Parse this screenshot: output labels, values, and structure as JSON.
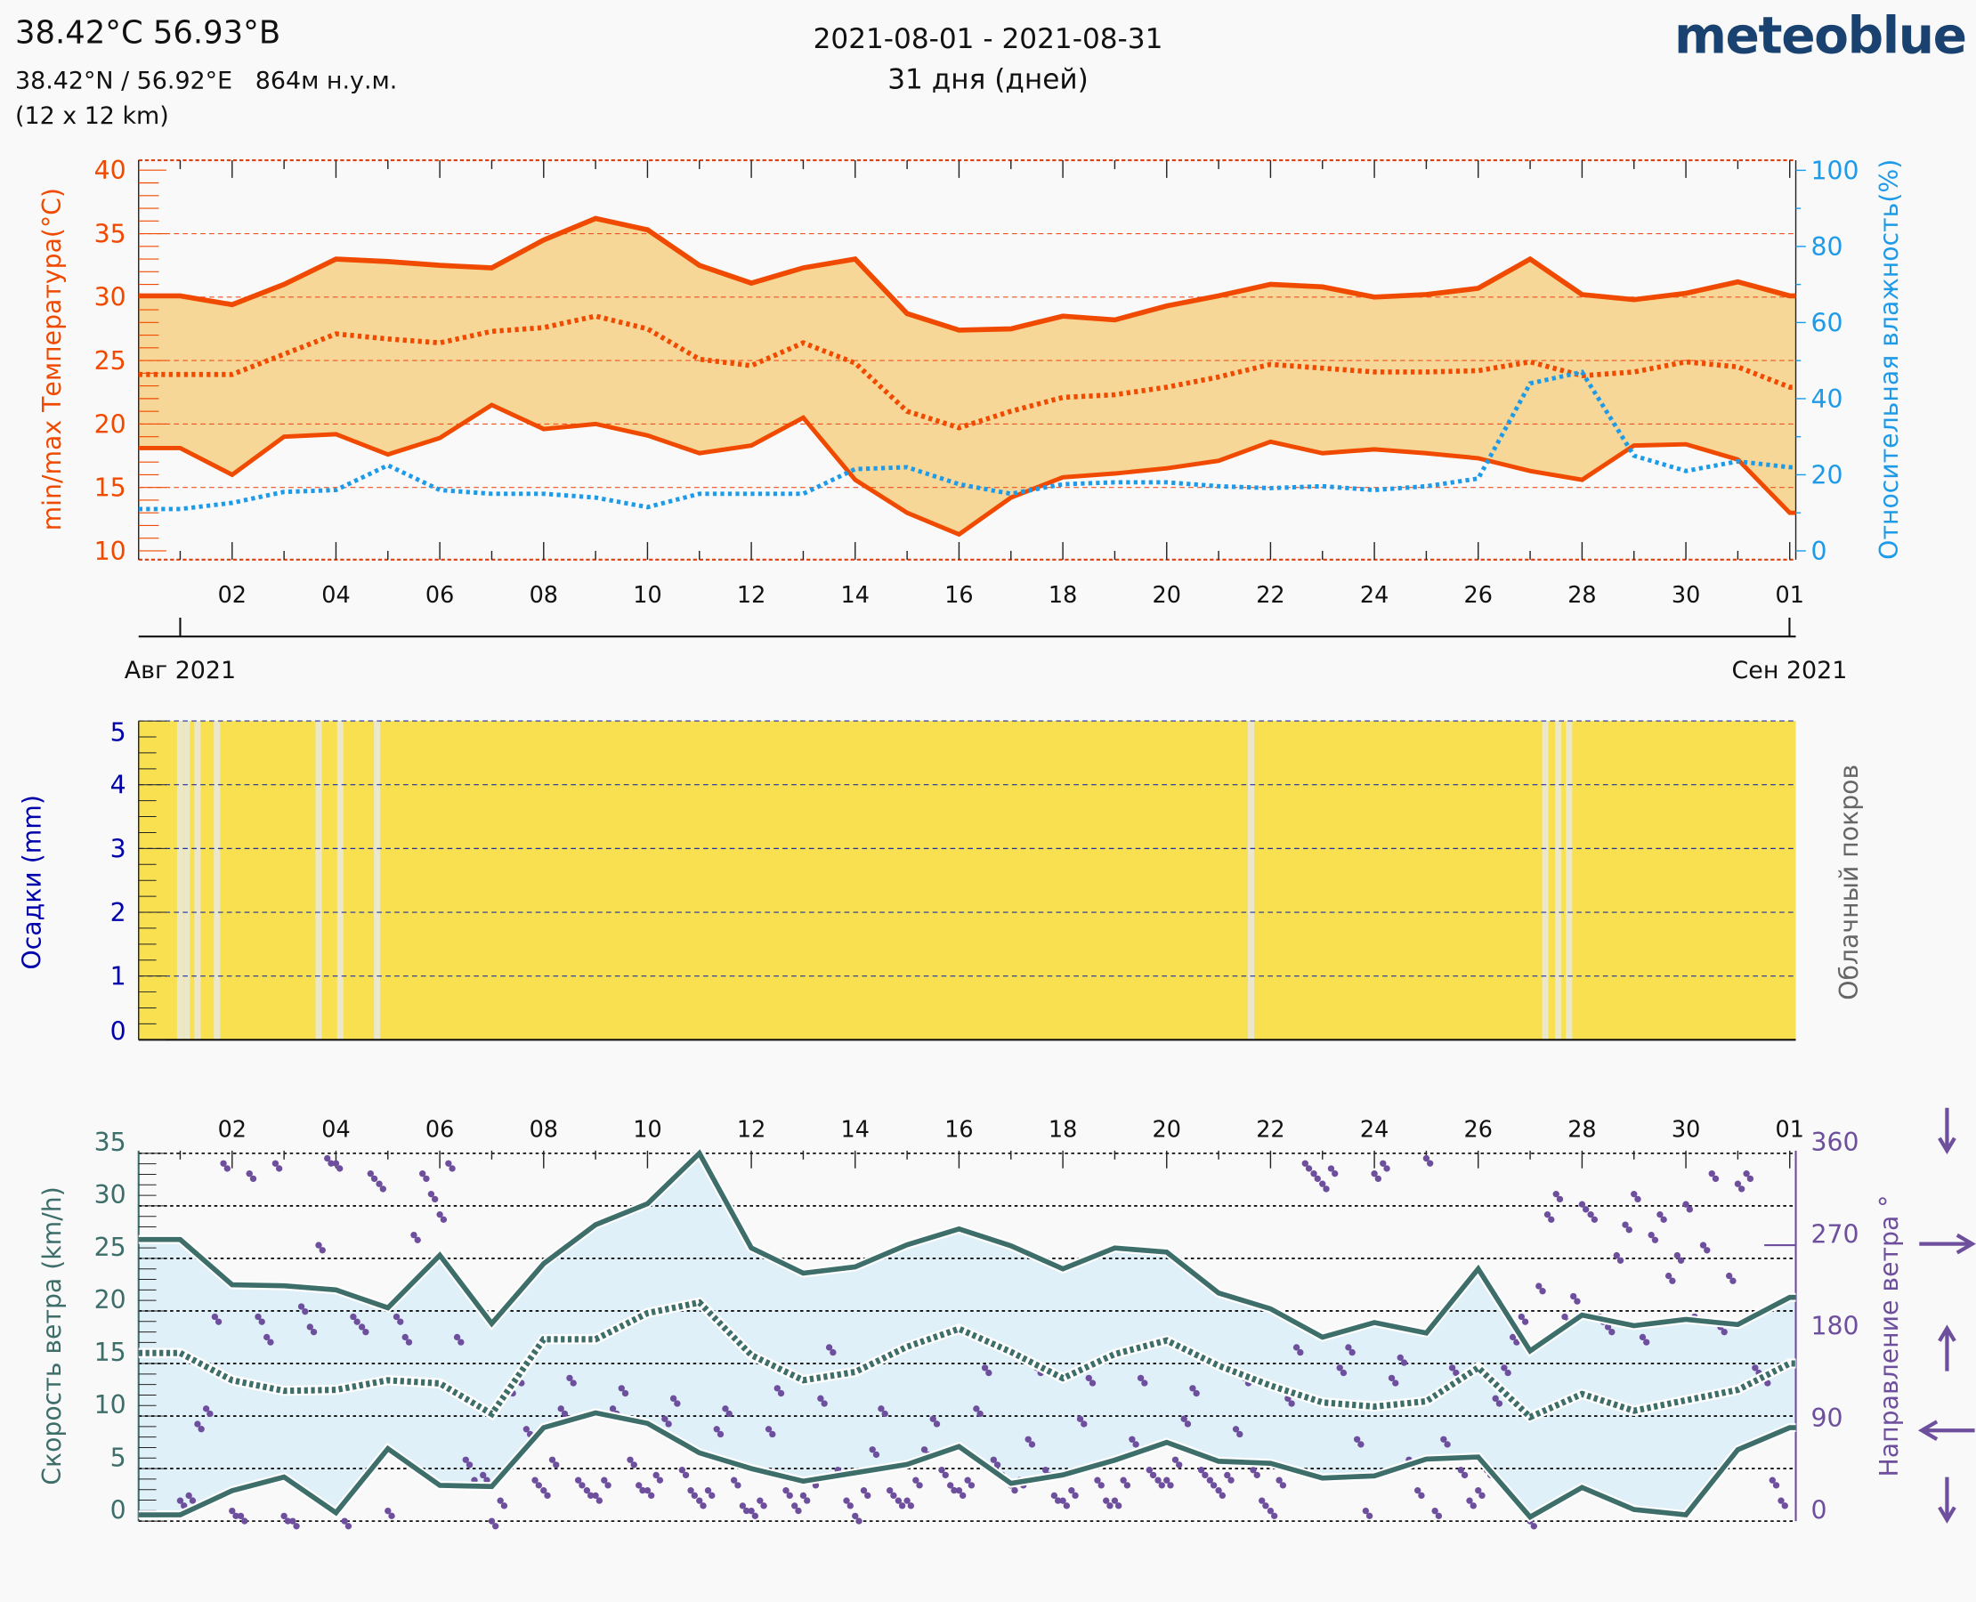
{
  "header": {
    "title": "38.42°C 56.93°В",
    "coords": "38.42°N / 56.92°E   864м н.у.м.",
    "resolution": "(12 x 12 km)",
    "date_range": "2021-08-01 - 2021-08-31",
    "days": "31 дня (дней)",
    "logo": "meteoblue"
  },
  "colors": {
    "temperature": "#f04a00",
    "temperature_fill": "#f7d797",
    "humidity": "#1e9be8",
    "precip_axis": "#0000aa",
    "clear_sky": "#f8e050",
    "cloud": "#e8e8e0",
    "wind": "#3d6e6a",
    "wind_fill": "#dff0f9",
    "direction": "#6e4f9e"
  },
  "axis_labels": {
    "temperature": "min/max Температура(°C)",
    "humidity": "Относительная влажность(%)",
    "month_start": "Авг 2021",
    "month_end": "Сен 2021",
    "precip": "Осадки (mm)",
    "cloud": "Облачный покров",
    "wind_speed": "Скорость ветра (km/h)",
    "wind_dir": "Направление ветра °"
  },
  "chart_data": [
    {
      "type": "line",
      "x": [
        "2021-08-01",
        "2021-08-02",
        "2021-08-03",
        "2021-08-04",
        "2021-08-05",
        "2021-08-06",
        "2021-08-07",
        "2021-08-08",
        "2021-08-09",
        "2021-08-10",
        "2021-08-11",
        "2021-08-12",
        "2021-08-13",
        "2021-08-14",
        "2021-08-15",
        "2021-08-16",
        "2021-08-17",
        "2021-08-18",
        "2021-08-19",
        "2021-08-20",
        "2021-08-21",
        "2021-08-22",
        "2021-08-23",
        "2021-08-24",
        "2021-08-25",
        "2021-08-26",
        "2021-08-27",
        "2021-08-28",
        "2021-08-29",
        "2021-08-30",
        "2021-08-31",
        "2021-09-01"
      ],
      "x_tick_labels": [
        "02",
        "04",
        "06",
        "08",
        "10",
        "12",
        "14",
        "16",
        "18",
        "20",
        "22",
        "24",
        "26",
        "28",
        "30",
        "01"
      ],
      "ylabel": "min/max Температура(°C)",
      "ylim": [
        10,
        40
      ],
      "y_ticks": [
        10,
        15,
        20,
        25,
        30,
        35,
        40
      ],
      "y2label": "Относительная влажность(%)",
      "y2lim": [
        0,
        100
      ],
      "y2_ticks": [
        0,
        20,
        40,
        60,
        80,
        100
      ],
      "series": [
        {
          "key": "temp_max",
          "style": "solid",
          "values": [
            30.1,
            29.4,
            31,
            33,
            32.8,
            32.5,
            32.3,
            34.5,
            36.2,
            35.3,
            32.5,
            31.1,
            32.3,
            33,
            28.7,
            27.4,
            27.5,
            28.5,
            28.2,
            29.3,
            30.1,
            31,
            30.8,
            30,
            30.2,
            30.7,
            33,
            30.2,
            29.8,
            30.3,
            31.2,
            30.1
          ]
        },
        {
          "key": "temp_mean",
          "style": "dotted",
          "values": [
            23.9,
            23.9,
            25.5,
            27.1,
            26.7,
            26.4,
            27.3,
            27.6,
            28.5,
            27.5,
            25.1,
            24.6,
            26.4,
            24.8,
            21,
            19.7,
            21,
            22.1,
            22.3,
            22.9,
            23.7,
            24.7,
            24.4,
            24.1,
            24.1,
            24.2,
            24.9,
            23.8,
            24.1,
            24.9,
            24.5,
            22.9
          ]
        },
        {
          "key": "temp_min",
          "style": "solid",
          "values": [
            18.1,
            16,
            19,
            19.2,
            17.6,
            18.9,
            21.5,
            19.6,
            20,
            19.1,
            17.7,
            18.3,
            20.5,
            15.6,
            13,
            11.3,
            14.2,
            15.8,
            16.1,
            16.5,
            17.1,
            18.6,
            17.7,
            18,
            17.7,
            17.3,
            16.3,
            15.6,
            18.3,
            18.4,
            17.2,
            13
          ]
        },
        {
          "key": "humidity",
          "axis": "right",
          "style": "dotted",
          "values": [
            11,
            12.6,
            15.5,
            16,
            22.5,
            16,
            15,
            15,
            14,
            11.5,
            15,
            15,
            15,
            21.5,
            22,
            17.5,
            15,
            17.5,
            18,
            18,
            17,
            16.5,
            17,
            16,
            17,
            19,
            44,
            47,
            25,
            21,
            23.5,
            22
          ]
        }
      ]
    },
    {
      "type": "bar",
      "ylabel": "Осадки (mm)",
      "ylim": [
        0,
        5
      ],
      "y_ticks": [
        0,
        1,
        2,
        3,
        4,
        5
      ],
      "y2label": "Облачный покров",
      "precipitation_daily": [
        0,
        0,
        0,
        0,
        0,
        0,
        0,
        0,
        0,
        0,
        0,
        0,
        0,
        0,
        0,
        0,
        0,
        0,
        0,
        0,
        0,
        0,
        0,
        0,
        0,
        0,
        0,
        0,
        0,
        0,
        0
      ],
      "background": "clear sky (yellow) except cloudy hours",
      "cloudy_hours": [
        "2021-08-01T00",
        "2021-08-01T03",
        "2021-08-01T08",
        "2021-08-01T17",
        "2021-08-03T16",
        "2021-08-04T02",
        "2021-08-04T19",
        "2021-08-21T15",
        "2021-08-27T07",
        "2021-08-27T13",
        "2021-08-27T18"
      ]
    },
    {
      "type": "line",
      "ylabel": "Скорость ветра (km/h)",
      "ylim": [
        0,
        35
      ],
      "y_ticks": [
        0,
        5,
        10,
        15,
        20,
        25,
        30,
        35
      ],
      "y2label": "Направление ветра °",
      "y2lim": [
        0,
        360
      ],
      "y2_ticks": [
        0,
        90,
        180,
        270,
        360
      ],
      "series": [
        {
          "key": "wind_max",
          "style": "solid",
          "values": [
            26.8,
            22.5,
            22.4,
            22,
            20.3,
            25.3,
            18.8,
            24.5,
            28.2,
            30.2,
            35,
            26,
            23.6,
            24.2,
            26.3,
            27.8,
            26.2,
            24,
            26,
            25.6,
            21.7,
            20.2,
            17.5,
            18.9,
            17.9,
            24,
            16.2,
            19.6,
            18.6,
            19.2,
            18.7,
            21.3
          ]
        },
        {
          "key": "wind_mean",
          "style": "dotted",
          "values": [
            16,
            13.4,
            12.4,
            12.5,
            13.4,
            13.1,
            10.2,
            17.3,
            17.3,
            19.8,
            20.8,
            15.8,
            13.4,
            14.2,
            16.6,
            18.3,
            16.1,
            13.6,
            15.9,
            17.2,
            14.8,
            12.9,
            11.3,
            10.9,
            11.4,
            14.6,
            9.9,
            12.1,
            10.5,
            11.5,
            12.5,
            15
          ]
        },
        {
          "key": "wind_min",
          "style": "solid",
          "values": [
            0.6,
            2.9,
            4.2,
            0.8,
            6.9,
            3.4,
            3.3,
            8.9,
            10.3,
            9.3,
            6.5,
            5,
            3.8,
            4.6,
            5.4,
            7.1,
            3.6,
            4.4,
            5.8,
            7.5,
            5.7,
            5.5,
            4.1,
            4.3,
            5.9,
            6.1,
            0.4,
            3.2,
            1.1,
            0.6,
            6.8,
            8.9
          ]
        }
      ],
      "direction_times": [
        "00:00",
        "04:00",
        "08:00",
        "12:00",
        "16:00",
        "20:00"
      ],
      "direction_deg": [
        [
          20,
          25,
          95,
          110,
          200,
          350
        ],
        [
          10,
          5,
          340,
          200,
          180,
          350
        ],
        [
          5,
          0,
          210,
          190,
          270,
          355
        ],
        [
          350,
          0,
          200,
          190,
          340,
          330
        ],
        [
          10,
          200,
          180,
          280,
          340,
          320
        ],
        [
          300,
          350,
          180,
          60,
          40,
          45
        ],
        [
          0,
          20,
          130,
          140,
          90,
          40
        ],
        [
          30,
          60,
          110,
          140,
          40,
          30
        ],
        [
          25,
          40,
          110,
          130,
          60,
          35
        ],
        [
          30,
          45,
          100,
          120,
          50,
          30
        ],
        [
          20,
          30,
          90,
          110,
          40,
          15
        ],
        [
          10,
          20,
          90,
          130,
          30,
          15
        ],
        [
          25,
          40,
          120,
          170,
          50,
          20
        ],
        [
          5,
          30,
          70,
          110,
          30,
          20
        ],
        [
          20,
          40,
          70,
          100,
          50,
          35
        ],
        [
          30,
          40,
          110,
          150,
          60,
          45
        ],
        [
          35,
          40,
          80,
          150,
          50,
          25
        ],
        [
          20,
          30,
          100,
          140,
          40,
          20
        ],
        [
          20,
          40,
          80,
          140,
          50,
          40
        ],
        [
          40,
          60,
          100,
          130,
          50,
          40
        ],
        [
          30,
          45,
          90,
          140,
          50,
          20
        ],
        [
          10,
          40,
          120,
          170,
          350,
          340
        ],
        [
          330,
          345,
          150,
          170,
          80,
          10
        ],
        [
          340,
          350,
          140,
          160,
          60,
          30
        ],
        [
          355,
          10,
          80,
          150,
          50,
          20
        ],
        [
          30,
          50,
          120,
          150,
          180,
          200
        ],
        [
          0,
          230,
          300,
          320,
          200,
          220
        ],
        [
          310,
          300,
          200,
          190,
          260,
          290
        ],
        [
          320,
          180,
          280,
          300,
          240,
          260
        ],
        [
          310,
          200,
          270,
          340,
          190,
          240
        ],
        [
          330,
          340,
          150,
          140,
          40,
          20
        ]
      ],
      "direction_arrows": [
        {
          "deg": 360,
          "icon": "arrow-down-icon"
        },
        {
          "deg": 270,
          "icon": "arrow-right-icon"
        },
        {
          "deg": 180,
          "icon": "arrow-up-icon"
        },
        {
          "deg": 90,
          "icon": "arrow-left-icon"
        },
        {
          "deg": 0,
          "icon": "arrow-down-icon"
        }
      ]
    }
  ]
}
